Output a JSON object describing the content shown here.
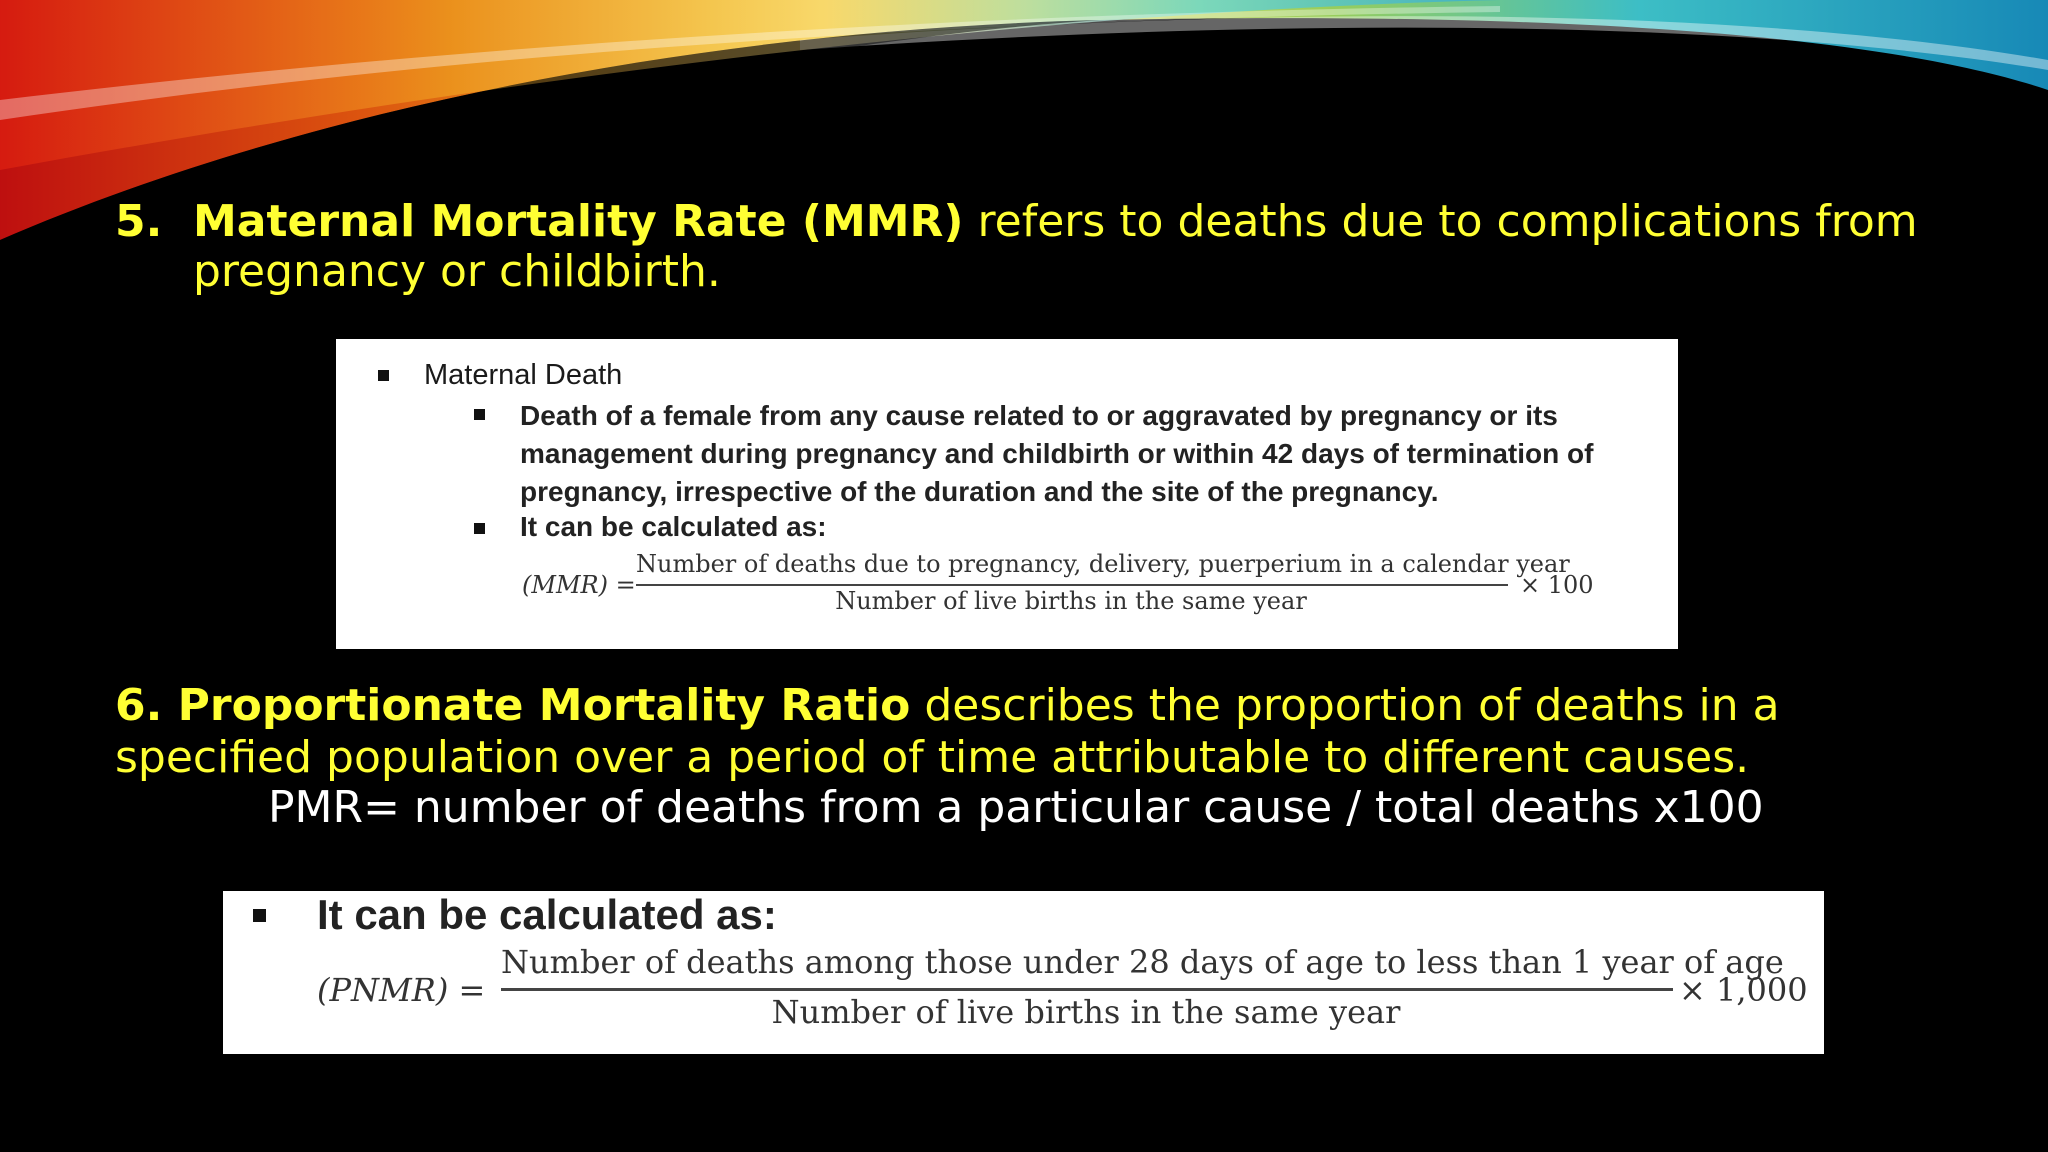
{
  "item5": {
    "number": "5.",
    "term": "Maternal Mortality Rate (MMR)",
    "text_line1": "refers to deaths due to complications from",
    "text_line2": "pregnancy or childbirth."
  },
  "box1": {
    "heading": "Maternal Death",
    "definition_lines": [
      "Death of a female from any cause related to or aggravated by pregnancy or its",
      "management during pregnancy and childbirth or within 42 days of termination of",
      "pregnancy, irrespective of the duration and the site of the pregnancy."
    ],
    "calc_label": "It can be calculated as:",
    "formula": {
      "lhs": "(MMR) =",
      "numerator": "Number of deaths due to pregnancy, delivery, puerperium in a calendar year",
      "denominator": "Number of live births in the same year",
      "multiplier": "× 100"
    }
  },
  "item6": {
    "term": "6. Proportionate Mortality Ratio",
    "text_line1": "describes the proportion of deaths in a",
    "text_line2": "specified population over a period of time attributable to different causes.",
    "pmr_formula": "PMR= number of deaths from a particular cause / total deaths x100"
  },
  "box2": {
    "calc_label": "It can be calculated as:",
    "formula": {
      "lhs": "(PNMR) =",
      "numerator": "Number of deaths among those under 28 days of age to less than 1 year of age",
      "denominator": "Number of live births in the same year",
      "multiplier": "× 1,000"
    }
  },
  "colors": {
    "background": "#000000",
    "text_yellow": "#ffff33",
    "text_white": "#ffffff"
  }
}
